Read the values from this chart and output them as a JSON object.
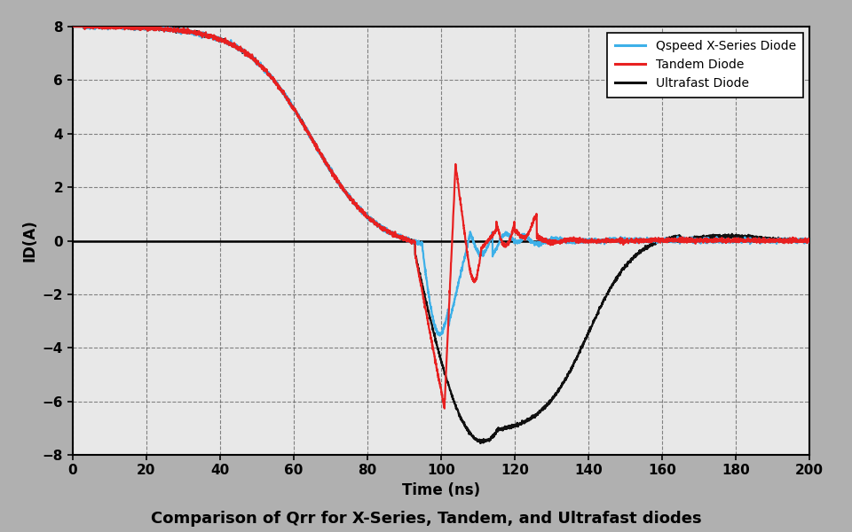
{
  "title": "Comparison of Qrr for X-Series, Tandem, and Ultrafast diodes",
  "xlabel": "Time (ns)",
  "ylabel": "ID(A)",
  "xlim": [
    0,
    200
  ],
  "ylim": [
    -8,
    8
  ],
  "xticks": [
    0,
    20,
    40,
    60,
    80,
    100,
    120,
    140,
    160,
    180,
    200
  ],
  "yticks": [
    -8,
    -6,
    -4,
    -2,
    0,
    2,
    4,
    6,
    8
  ],
  "plot_bg": "#e8e8e8",
  "outer_bg": "#b0b0b0",
  "grid_color": "#555555",
  "legend_labels": [
    "Qspeed X-Series Diode",
    "Tandem Diode",
    "Ultrafast Diode"
  ],
  "colors": [
    "#3db0e8",
    "#e82020",
    "#101010"
  ],
  "linewidths": [
    1.6,
    1.6,
    1.6
  ]
}
